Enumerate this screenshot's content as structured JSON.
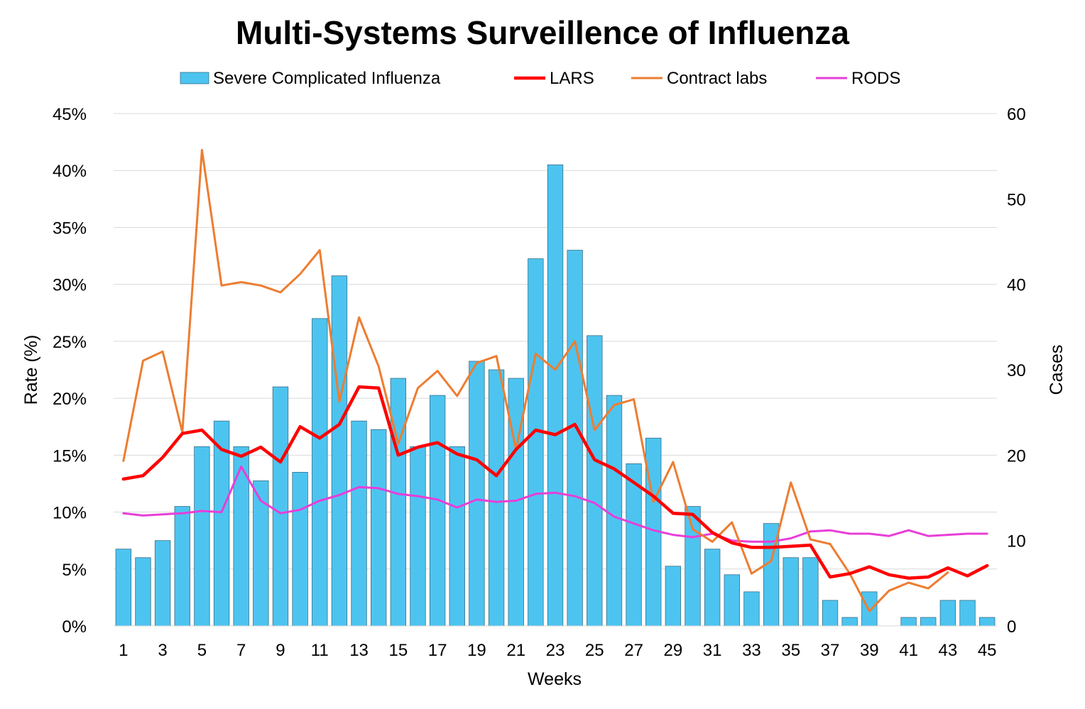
{
  "chart_data": {
    "type": "bar",
    "title": "Multi-Systems Surveillence of Influenza",
    "xlabel": "Weeks",
    "ylabel": "Rate (%)",
    "y2label": "Cases",
    "x": [
      1,
      2,
      3,
      4,
      5,
      6,
      7,
      8,
      9,
      10,
      11,
      12,
      13,
      14,
      15,
      16,
      17,
      18,
      19,
      20,
      21,
      22,
      23,
      24,
      25,
      26,
      27,
      28,
      29,
      30,
      31,
      32,
      33,
      34,
      35,
      36,
      37,
      38,
      39,
      40,
      41,
      42,
      43,
      44,
      45
    ],
    "x_tick_labels": [
      "1",
      "3",
      "5",
      "7",
      "9",
      "11",
      "13",
      "15",
      "17",
      "19",
      "21",
      "23",
      "25",
      "27",
      "29",
      "31",
      "33",
      "35",
      "37",
      "39",
      "41",
      "43",
      "45"
    ],
    "ylim": [
      0,
      45
    ],
    "y_tick_labels": [
      "0%",
      "5%",
      "10%",
      "15%",
      "20%",
      "25%",
      "30%",
      "35%",
      "40%",
      "45%"
    ],
    "y2lim": [
      0,
      60
    ],
    "y2_tick_labels": [
      "0",
      "10",
      "20",
      "30",
      "40",
      "50",
      "60"
    ],
    "grid": true,
    "legend_position": "top",
    "series": [
      {
        "name": "Severe Complicated Influenza",
        "type": "bar",
        "axis": "right",
        "color": "#4dc4f0",
        "values": [
          9,
          8,
          10,
          14,
          21,
          24,
          21,
          17,
          28,
          18,
          36,
          41,
          24,
          23,
          29,
          21,
          27,
          21,
          31,
          30,
          29,
          43,
          54,
          44,
          34,
          27,
          19,
          22,
          7,
          14,
          9,
          6,
          4,
          12,
          8,
          8,
          3,
          1,
          4,
          0,
          1,
          1,
          3,
          3,
          1
        ]
      },
      {
        "name": "LARS",
        "type": "line",
        "axis": "left",
        "color": "#ff0000",
        "values": [
          12.9,
          13.2,
          14.8,
          16.9,
          17.2,
          15.5,
          14.9,
          15.7,
          14.4,
          17.5,
          16.5,
          17.7,
          21.0,
          20.9,
          15.0,
          15.7,
          16.1,
          15.1,
          14.6,
          13.2,
          15.5,
          17.2,
          16.8,
          17.7,
          14.6,
          13.8,
          12.6,
          11.4,
          9.9,
          9.8,
          8.2,
          7.3,
          6.9,
          6.9,
          7.0,
          7.1,
          4.3,
          4.6,
          5.2,
          4.5,
          4.2,
          4.3,
          5.1,
          4.4,
          5.3
        ]
      },
      {
        "name": "Contract labs",
        "type": "line",
        "axis": "left",
        "color": "#ed7d31",
        "values": [
          14.5,
          23.3,
          24.1,
          17.0,
          41.8,
          29.9,
          30.2,
          29.9,
          29.3,
          30.9,
          33.0,
          19.7,
          27.1,
          22.8,
          16.0,
          20.9,
          22.4,
          20.2,
          23.1,
          23.7,
          15.5,
          23.9,
          22.5,
          25.0,
          17.2,
          19.4,
          19.9,
          10.9,
          14.4,
          8.5,
          7.4,
          9.1,
          4.6,
          5.7,
          12.6,
          7.6,
          7.2,
          4.6,
          1.3,
          3.1,
          3.8,
          3.3,
          4.7,
          null,
          null
        ]
      },
      {
        "name": "RODS",
        "type": "line",
        "axis": "left",
        "color": "#e83ed8",
        "values": [
          9.9,
          9.7,
          9.8,
          9.9,
          10.1,
          10.0,
          14.0,
          11.0,
          9.9,
          10.2,
          11.0,
          11.5,
          12.2,
          12.1,
          11.6,
          11.4,
          11.1,
          10.4,
          11.1,
          10.9,
          11.0,
          11.6,
          11.7,
          11.4,
          10.8,
          9.6,
          9.0,
          8.4,
          8.0,
          7.8,
          8.1,
          7.5,
          7.4,
          7.4,
          7.7,
          8.3,
          8.4,
          8.1,
          8.1,
          7.9,
          8.4,
          7.9,
          8.0,
          8.1,
          8.1
        ]
      }
    ]
  }
}
